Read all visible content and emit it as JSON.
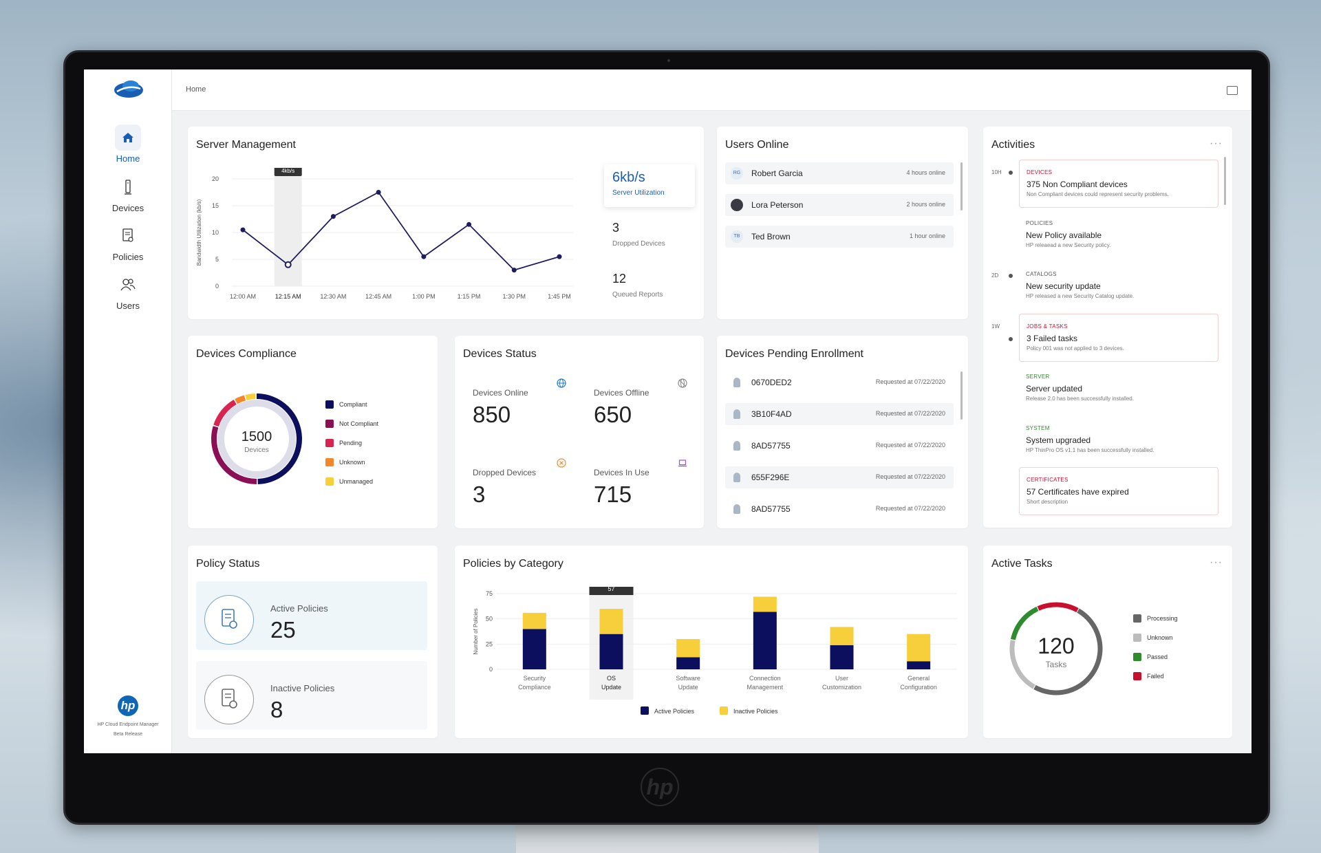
{
  "nav": {
    "items": [
      {
        "label": "Home",
        "icon": "home-icon",
        "active": true
      },
      {
        "label": "Devices",
        "icon": "device-icon"
      },
      {
        "label": "Policies",
        "icon": "policy-icon"
      },
      {
        "label": "Users",
        "icon": "users-icon"
      }
    ],
    "footer_line1": "HP Cloud Endpoint Manager",
    "footer_line2": "Beta Release",
    "footer_logo": "hp"
  },
  "topbar": {
    "breadcrumb": "Home"
  },
  "server": {
    "title": "Server Management",
    "tooltip": "4kb/s",
    "utilization_value": "6kb/s",
    "utilization_label": "Server Utilization",
    "dropped_value": "3",
    "dropped_label": "Dropped Devices",
    "queued_value": "12",
    "queued_label": "Queued Reports"
  },
  "chart_data": [
    {
      "type": "line",
      "ylabel": "Bandwidth Utilization (kb/s)",
      "x": [
        "12:00 AM",
        "12:15 AM",
        "12:30 AM",
        "12:45 AM",
        "1:00 PM",
        "1:15 PM",
        "1:30 PM",
        "1:45 PM"
      ],
      "values": [
        10.5,
        4,
        13,
        17.5,
        5.5,
        11.5,
        3,
        5.5
      ],
      "yticks": [
        0,
        5,
        10,
        15,
        20
      ],
      "ylim": [
        0,
        20
      ],
      "highlight": "12:15 AM",
      "color": "#1f1d5c"
    },
    {
      "type": "bar",
      "stacked": true,
      "ylabel": "Number of Policies",
      "categories": [
        [
          "Security",
          "Compliance"
        ],
        [
          "OS",
          "Update"
        ],
        [
          "Software",
          "Update"
        ],
        [
          "Connection",
          "Management"
        ],
        [
          "User",
          "Customization"
        ],
        [
          "General",
          "Configuration"
        ]
      ],
      "series": [
        {
          "name": "Active Policies",
          "color": "#0b0f5e",
          "values": [
            40,
            35,
            12,
            57,
            24,
            8
          ]
        },
        {
          "name": "Inactive Policies",
          "color": "#f6cf3a",
          "values": [
            16,
            25,
            18,
            15,
            18,
            27
          ]
        }
      ],
      "yticks": [
        0,
        25,
        50,
        75
      ],
      "ylim": [
        0,
        75
      ],
      "tooltip": "57",
      "highlight": "OS Update"
    }
  ],
  "users": {
    "title": "Users Online",
    "rows": [
      {
        "initials": "RG",
        "name": "Robert Garcia",
        "time": "4 hours online"
      },
      {
        "initials": "",
        "name": "Lora Peterson",
        "time": "2 hours online"
      },
      {
        "initials": "TB",
        "name": "Ted Brown",
        "time": "1 hour online"
      }
    ]
  },
  "activities": {
    "title": "Activities",
    "more": "···",
    "timeline": [
      "10H",
      "2D",
      "1W"
    ],
    "items": [
      {
        "cat": "DEVICES",
        "title": "375 Non Compliant devices",
        "desc": "Non Compliant devices could represent security problems.",
        "color": "#c8102e",
        "highlight": true
      },
      {
        "cat": "POLICIES",
        "title": "New Policy available",
        "desc": "HP releaead a new Security policy.",
        "color": "#555555",
        "highlight": false
      },
      {
        "cat": "CATALOGS",
        "title": "New security update",
        "desc": "HP released a new Security Catalog update.",
        "color": "#555555",
        "highlight": false
      },
      {
        "cat": "JOBS & TASKS",
        "title": "3 Failed tasks",
        "desc": "Policy 001 was not applied to 3 devices.",
        "color": "#c8102e",
        "highlight": true
      },
      {
        "cat": "SERVER",
        "title": "Server updated",
        "desc": "Release 2.0 has been successfully installed.",
        "color": "#2e8b2e",
        "highlight": false
      },
      {
        "cat": "SYSTEM",
        "title": "System  upgraded",
        "desc": "HP ThinPro OS v1.1 has been successfully installed.",
        "color": "#2e8b2e",
        "highlight": false
      },
      {
        "cat": "CERTIFICATES",
        "title": "57 Certificates have expired",
        "desc": "Short description",
        "color": "#c8102e",
        "highlight": true
      }
    ]
  },
  "compliance": {
    "title": "Devices Compliance",
    "center_value": "1500",
    "center_label": "Devices",
    "legend": [
      {
        "label": "Compliant",
        "color": "#0b0f5e",
        "share": 0.5
      },
      {
        "label": "Not Compliant",
        "color": "#8a0f55",
        "share": 0.3
      },
      {
        "label": "Pending",
        "color": "#d8244f",
        "share": 0.12
      },
      {
        "label": "Unknown",
        "color": "#f4872a",
        "share": 0.04
      },
      {
        "label": "Unmanaged",
        "color": "#f6cf3a",
        "share": 0.04
      }
    ]
  },
  "status": {
    "title": "Devices Status",
    "tiles": [
      {
        "label": "Devices Online",
        "value": "850",
        "bg": "#f1f8fc",
        "icon": "globe-icon"
      },
      {
        "label": "Devices Offline",
        "value": "650",
        "bg": "#f5f6f8",
        "icon": "offline-globe-icon"
      },
      {
        "label": "Dropped Devices",
        "value": "3",
        "bg": "#fdf6f0",
        "icon": "close-circle-icon"
      },
      {
        "label": "Devices In Use",
        "value": "715",
        "bg": "#f6f4fb",
        "icon": "laptop-icon"
      }
    ]
  },
  "enrollment": {
    "title": "Devices Pending Enrollment",
    "rows": [
      {
        "id": "0670DED2",
        "req": "Requested at 07/22/2020"
      },
      {
        "id": "3B10F4AD",
        "req": "Requested at 07/22/2020"
      },
      {
        "id": "8AD57755",
        "req": "Requested at 07/22/2020"
      },
      {
        "id": "655F296E",
        "req": "Requested at 07/22/2020"
      },
      {
        "id": "8AD57755",
        "req": "Requested at 07/22/2020"
      }
    ]
  },
  "policy": {
    "title": "Policy Status",
    "active_label": "Active Policies",
    "active_value": "25",
    "inactive_label": "Inactive Policies",
    "inactive_value": "8"
  },
  "categories": {
    "title": "Policies by Category"
  },
  "tasks": {
    "title": "Active Tasks",
    "more": "···",
    "center_value": "120",
    "center_label": "Tasks",
    "legend": [
      {
        "label": "Processing",
        "color": "#666666",
        "share": 0.5
      },
      {
        "label": "Unknown",
        "color": "#bcbcbc",
        "share": 0.2
      },
      {
        "label": "Passed",
        "color": "#2e8b2e",
        "share": 0.15
      },
      {
        "label": "Failed",
        "color": "#c8102e",
        "share": 0.15
      }
    ]
  }
}
